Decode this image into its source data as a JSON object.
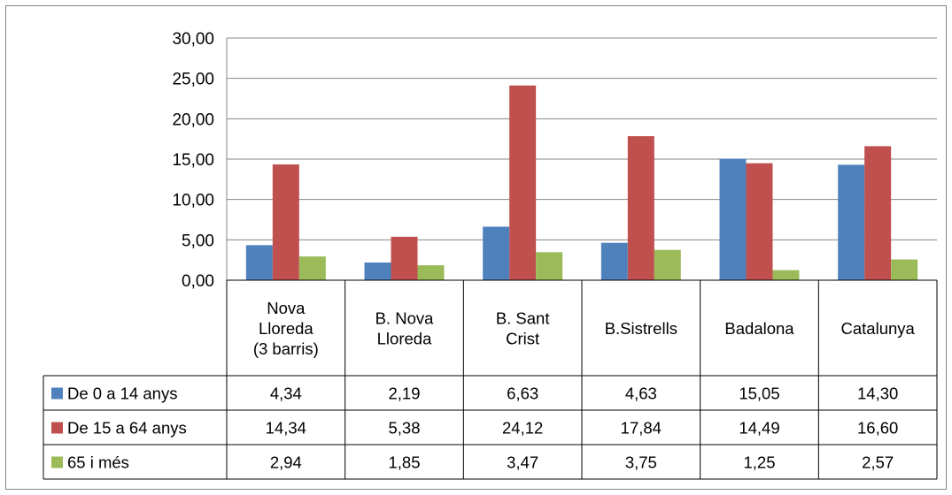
{
  "chart_data": {
    "type": "bar",
    "categories": [
      [
        "Nova",
        "Lloreda",
        "(3 barris)"
      ],
      [
        "B. Nova",
        "Lloreda"
      ],
      [
        "B. Sant",
        "Crist"
      ],
      [
        "B.Sistrells"
      ],
      [
        "Badalona"
      ],
      [
        "Catalunya"
      ]
    ],
    "series": [
      {
        "name": "De 0 a 14 anys",
        "color": "#4F81BD",
        "values": [
          4.34,
          2.19,
          6.63,
          4.63,
          15.05,
          14.3
        ],
        "labels": [
          "4,34",
          "2,19",
          "6,63",
          "4,63",
          "15,05",
          "14,30"
        ]
      },
      {
        "name": "De 15 a 64 anys",
        "color": "#C0504D",
        "values": [
          14.34,
          5.38,
          24.12,
          17.84,
          14.49,
          16.6
        ],
        "labels": [
          "14,34",
          "5,38",
          "24,12",
          "17,84",
          "14,49",
          "16,60"
        ]
      },
      {
        "name": "65 i més",
        "color": "#9BBB59",
        "values": [
          2.94,
          1.85,
          3.47,
          3.75,
          1.25,
          2.57
        ],
        "labels": [
          "2,94",
          "1,85",
          "3,47",
          "3,75",
          "1,25",
          "2,57"
        ]
      }
    ],
    "ylim": [
      0,
      30
    ],
    "yticks": [
      0,
      5,
      10,
      15,
      20,
      25,
      30
    ],
    "ytick_labels": [
      "0,00",
      "5,00",
      "10,00",
      "15,00",
      "20,00",
      "25,00",
      "30,00"
    ],
    "grid": true,
    "legend": "data-table-left"
  }
}
